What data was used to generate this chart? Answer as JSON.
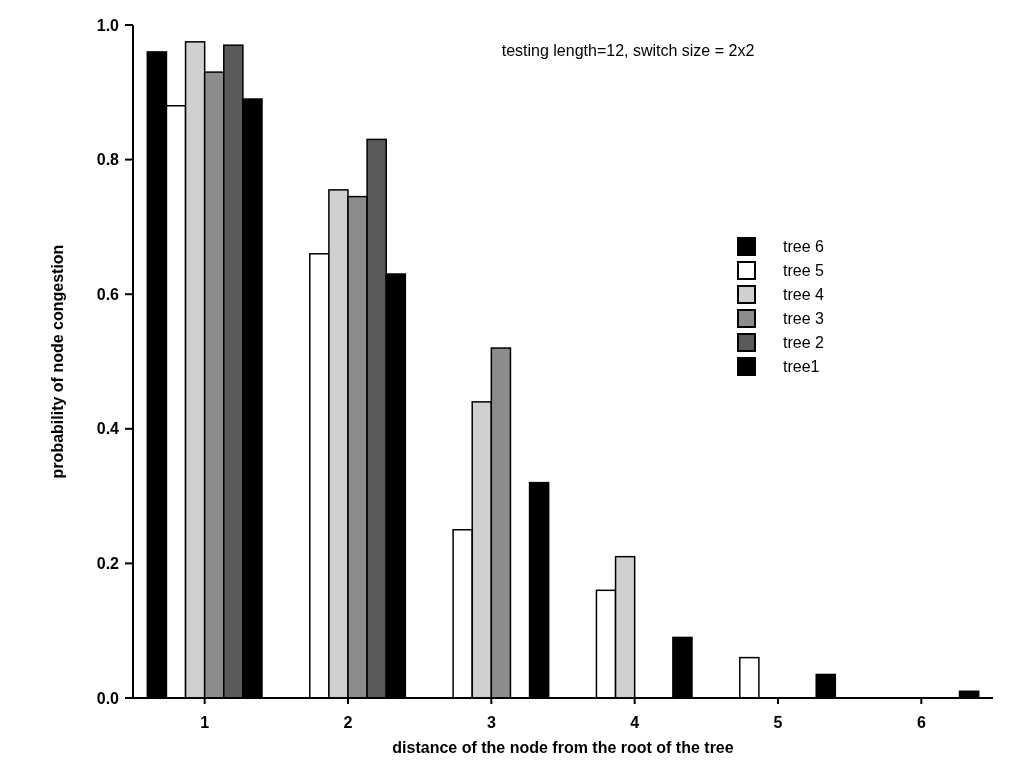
{
  "chart_data": {
    "type": "bar",
    "title": "testing length=12, switch size = 2x2",
    "xlabel": "distance of the node from the root of the tree",
    "ylabel": "probability of node congestion",
    "categories": [
      "1",
      "2",
      "3",
      "4",
      "5",
      "6"
    ],
    "series": [
      {
        "name": "tree 6",
        "color": "#000000",
        "values": [
          0.96,
          0,
          0,
          0,
          0,
          0
        ]
      },
      {
        "name": "tree 5",
        "color": "#ffffff",
        "values": [
          0.88,
          0.66,
          0.25,
          0.16,
          0.06,
          0
        ]
      },
      {
        "name": "tree 4",
        "color": "#d0d0d0",
        "values": [
          0.975,
          0.755,
          0.44,
          0.21,
          0,
          0
        ]
      },
      {
        "name": "tree 3",
        "color": "#8c8c8c",
        "values": [
          0.93,
          0.745,
          0.52,
          0,
          0,
          0
        ]
      },
      {
        "name": "tree 2",
        "color": "#5a5a5a",
        "values": [
          0.97,
          0.83,
          0,
          0,
          0,
          0
        ]
      },
      {
        "name": "tree1",
        "color": "#000000",
        "values": [
          0.89,
          0.63,
          0.32,
          0.09,
          0.035,
          0.01
        ]
      }
    ],
    "ylim": [
      0,
      1
    ],
    "yticks": [
      {
        "value": 0,
        "label": "0.0"
      },
      {
        "value": 0.2,
        "label": "0.2"
      },
      {
        "value": 0.4,
        "label": "0.4"
      },
      {
        "value": 0.6,
        "label": "0.6"
      },
      {
        "value": 0.8,
        "label": "0.8"
      },
      {
        "value": 1,
        "label": "1.0"
      }
    ],
    "legend": "right",
    "grid": false
  }
}
